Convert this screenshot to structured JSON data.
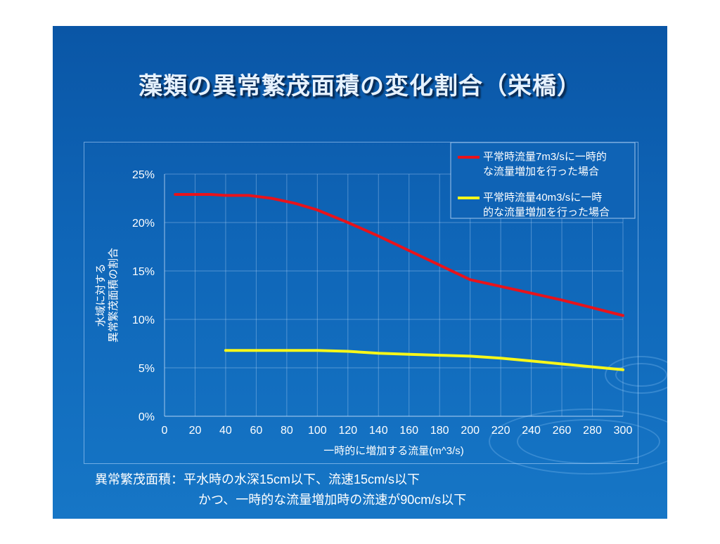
{
  "title": "藻類の異常繁茂面積の変化割合（栄橋）",
  "chart_data": {
    "type": "line",
    "xlabel": "一時的に増加する流量(m^3/s)",
    "ylabel_lines": [
      "水域に対する",
      "異常繁茂面積の割合"
    ],
    "x_ticks": [
      0,
      20,
      40,
      60,
      80,
      100,
      120,
      140,
      160,
      180,
      200,
      220,
      240,
      260,
      280,
      300
    ],
    "y_ticks": [
      "0%",
      "5%",
      "10%",
      "15%",
      "20%",
      "25%"
    ],
    "xlim": [
      0,
      300
    ],
    "ylim": [
      0,
      25
    ],
    "grid": true,
    "legend_position": "top-right",
    "series": [
      {
        "name": "平常時流量7m3/sに一時的な流量増加を行った場合",
        "name_lines": [
          "平常時流量7m3/sに一時的",
          "な流量増加を行った場合"
        ],
        "color": "#e8131b",
        "points": [
          [
            7,
            22.9
          ],
          [
            20,
            22.9
          ],
          [
            30,
            22.9
          ],
          [
            40,
            22.8
          ],
          [
            55,
            22.8
          ],
          [
            70,
            22.5
          ],
          [
            85,
            22.0
          ],
          [
            100,
            21.3
          ],
          [
            120,
            20.0
          ],
          [
            140,
            18.6
          ],
          [
            160,
            17.1
          ],
          [
            180,
            15.6
          ],
          [
            200,
            14.1
          ],
          [
            220,
            13.4
          ],
          [
            240,
            12.7
          ],
          [
            260,
            12.0
          ],
          [
            280,
            11.2
          ],
          [
            300,
            10.4
          ]
        ]
      },
      {
        "name": "平常時流量40m3/sに一時的な流量増加を行った場合",
        "name_lines": [
          "平常時流量40m3/sに一時",
          "的な流量増加を行った場合"
        ],
        "color": "#f7f71a",
        "points": [
          [
            40,
            6.8
          ],
          [
            60,
            6.8
          ],
          [
            80,
            6.8
          ],
          [
            100,
            6.8
          ],
          [
            120,
            6.7
          ],
          [
            140,
            6.5
          ],
          [
            160,
            6.4
          ],
          [
            180,
            6.3
          ],
          [
            200,
            6.2
          ],
          [
            220,
            6.0
          ],
          [
            240,
            5.7
          ],
          [
            260,
            5.4
          ],
          [
            280,
            5.1
          ],
          [
            300,
            4.8
          ]
        ]
      }
    ]
  },
  "notes": {
    "line1": "異常繁茂面積：平水時の水深15cm以下、流速15cm/s以下",
    "line2": "かつ、一時的な流量増加時の流速が90cm/s以下"
  }
}
